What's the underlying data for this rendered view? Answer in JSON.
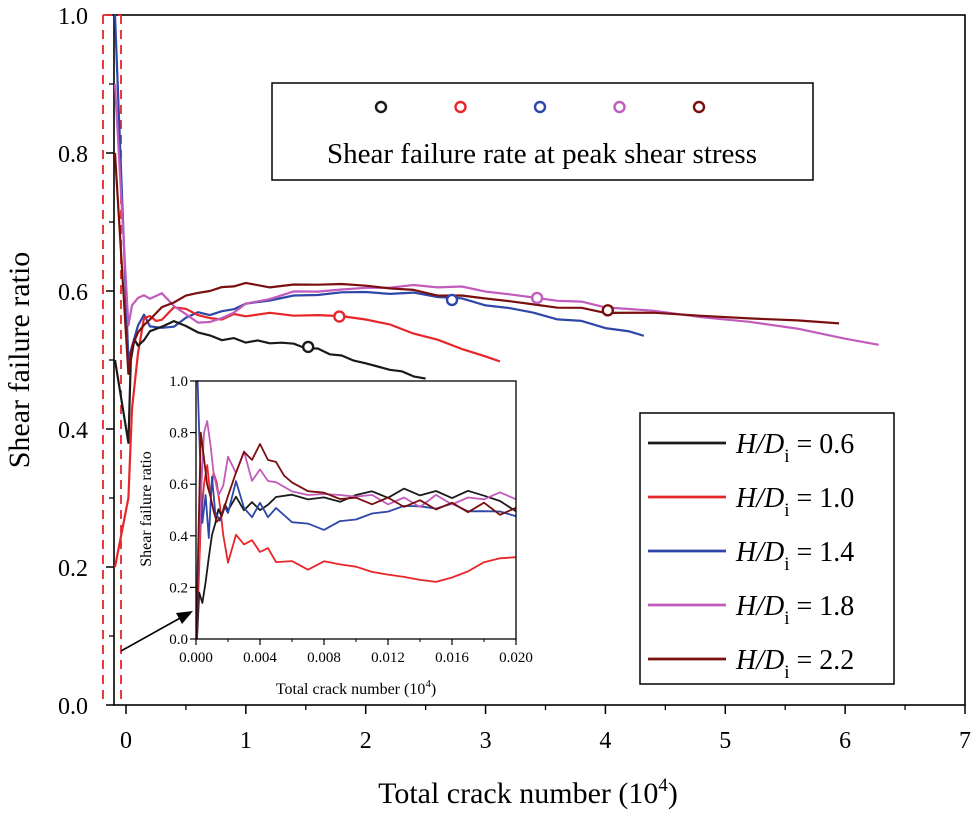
{
  "chart_data": {
    "type": "line",
    "title": "",
    "xlabel": "Total crack number (10",
    "xlabel_sup": "4",
    "xlabel_end": ")",
    "ylabel": "Shear failure ratio",
    "xlim": [
      -0.1,
      7
    ],
    "ylim": [
      0,
      1.0
    ],
    "xticks": [
      "0",
      "1",
      "2",
      "3",
      "4",
      "5",
      "6",
      "7"
    ],
    "yticks": [
      "0.0",
      "0.2",
      "0.4",
      "0.6",
      "0.8",
      "1.0"
    ],
    "legend_position": "lower-right",
    "colors": {
      "hd06": "#1a1a1a",
      "hd10": "#e8262a",
      "hd14": "#2e47a8",
      "hd18": "#c25cbc",
      "hd22": "#7a0f0f"
    },
    "series": [
      {
        "key": "hd06",
        "name_prefix": "H/D",
        "name_sub": "i",
        "name_value": " = 0.6",
        "x": [
          0.02,
          0.04,
          0.07,
          0.1,
          0.15,
          0.2,
          0.3,
          0.4,
          0.5,
          0.6,
          0.7,
          0.8,
          0.9,
          1.0,
          1.1,
          1.2,
          1.3,
          1.4,
          1.5,
          1.6,
          1.7,
          1.8,
          1.9,
          2.0,
          2.1,
          2.2,
          2.3,
          2.4,
          2.5
        ],
        "y": [
          0.38,
          0.5,
          0.53,
          0.52,
          0.53,
          0.54,
          0.55,
          0.555,
          0.55,
          0.54,
          0.535,
          0.53,
          0.53,
          0.527,
          0.527,
          0.525,
          0.525,
          0.523,
          0.518,
          0.515,
          0.51,
          0.505,
          0.5,
          0.495,
          0.49,
          0.487,
          0.482,
          0.478,
          0.473
        ],
        "peak": [
          1.52,
          0.519
        ]
      },
      {
        "key": "hd10",
        "name_prefix": "H/D",
        "name_sub": "i",
        "name_value": " = 1.0",
        "x": [
          0.02,
          0.05,
          0.1,
          0.15,
          0.2,
          0.25,
          0.3,
          0.4,
          0.5,
          0.6,
          0.7,
          0.8,
          0.9,
          1.0,
          1.2,
          1.4,
          1.6,
          1.8,
          2.0,
          2.2,
          2.4,
          2.6,
          2.8,
          3.0,
          3.12
        ],
        "y": [
          0.3,
          0.43,
          0.51,
          0.56,
          0.565,
          0.555,
          0.56,
          0.575,
          0.575,
          0.565,
          0.56,
          0.56,
          0.565,
          0.565,
          0.567,
          0.565,
          0.565,
          0.563,
          0.56,
          0.55,
          0.54,
          0.528,
          0.517,
          0.505,
          0.498
        ],
        "peak": [
          1.78,
          0.563
        ]
      },
      {
        "key": "hd14",
        "name_prefix": "H/D",
        "name_sub": "i",
        "name_value": " = 1.4",
        "x": [
          0.02,
          0.05,
          0.1,
          0.15,
          0.2,
          0.3,
          0.4,
          0.5,
          0.6,
          0.7,
          0.8,
          0.9,
          1.0,
          1.2,
          1.4,
          1.6,
          1.8,
          2.0,
          2.2,
          2.4,
          2.6,
          2.8,
          3.0,
          3.2,
          3.4,
          3.6,
          3.8,
          4.0,
          4.2,
          4.32
        ],
        "y": [
          0.5,
          0.52,
          0.55,
          0.565,
          0.55,
          0.545,
          0.55,
          0.56,
          0.57,
          0.565,
          0.57,
          0.575,
          0.58,
          0.588,
          0.592,
          0.595,
          0.598,
          0.598,
          0.597,
          0.596,
          0.593,
          0.588,
          0.58,
          0.575,
          0.568,
          0.56,
          0.555,
          0.548,
          0.54,
          0.535
        ],
        "peak": [
          2.72,
          0.587
        ]
      },
      {
        "key": "hd18",
        "name_prefix": "H/D",
        "name_sub": "i",
        "name_value": " = 1.8",
        "x": [
          0.02,
          0.05,
          0.1,
          0.15,
          0.2,
          0.3,
          0.4,
          0.5,
          0.6,
          0.7,
          0.8,
          0.9,
          1.0,
          1.2,
          1.4,
          1.6,
          1.8,
          2.0,
          2.2,
          2.4,
          2.6,
          2.8,
          3.0,
          3.2,
          3.4,
          3.6,
          3.8,
          4.0,
          4.4,
          4.8,
          5.2,
          5.6,
          6.0,
          6.28
        ],
        "y": [
          0.55,
          0.58,
          0.59,
          0.593,
          0.59,
          0.595,
          0.58,
          0.565,
          0.555,
          0.555,
          0.56,
          0.57,
          0.58,
          0.59,
          0.598,
          0.6,
          0.602,
          0.604,
          0.606,
          0.607,
          0.607,
          0.605,
          0.6,
          0.595,
          0.59,
          0.587,
          0.583,
          0.578,
          0.57,
          0.563,
          0.555,
          0.545,
          0.532,
          0.522
        ],
        "peak": [
          3.43,
          0.59
        ]
      },
      {
        "key": "hd22",
        "name_prefix": "H/D",
        "name_sub": "i",
        "name_value": " = 2.2",
        "x": [
          0.02,
          0.05,
          0.1,
          0.15,
          0.2,
          0.3,
          0.4,
          0.5,
          0.6,
          0.7,
          0.8,
          0.9,
          1.0,
          1.2,
          1.4,
          1.6,
          1.8,
          2.0,
          2.2,
          2.4,
          2.6,
          2.8,
          3.0,
          3.2,
          3.4,
          3.6,
          3.8,
          4.0,
          4.4,
          4.8,
          5.2,
          5.6,
          5.95
        ],
        "y": [
          0.48,
          0.52,
          0.54,
          0.55,
          0.56,
          0.575,
          0.585,
          0.592,
          0.598,
          0.6,
          0.605,
          0.608,
          0.61,
          0.607,
          0.608,
          0.61,
          0.61,
          0.607,
          0.605,
          0.6,
          0.595,
          0.592,
          0.59,
          0.585,
          0.58,
          0.577,
          0.574,
          0.57,
          0.567,
          0.565,
          0.56,
          0.557,
          0.553
        ],
        "peak": [
          4.02,
          0.572
        ]
      }
    ],
    "peak_legend_title": "Shear failure rate at peak shear stress",
    "inset": {
      "xlabel": "Total crack number (10",
      "xlabel_sup": "4",
      "xlabel_end": ")",
      "ylabel": "Shear failure ratio",
      "xlim": [
        0,
        0.02
      ],
      "ylim": [
        0,
        1.0
      ],
      "xticks": [
        "0.000",
        "0.004",
        "0.008",
        "0.012",
        "0.016",
        "0.020"
      ],
      "yticks": [
        "0.0",
        "0.2",
        "0.4",
        "0.6",
        "0.8",
        "1.0"
      ],
      "series": [
        {
          "key": "hd06",
          "x": [
            0.0002,
            0.0004,
            0.0006,
            0.0008,
            0.001,
            0.0012,
            0.0014,
            0.0016,
            0.0018,
            0.002,
            0.0025,
            0.003,
            0.0035,
            0.004,
            0.0045,
            0.005,
            0.006,
            0.007,
            0.008,
            0.009,
            0.01,
            0.011,
            0.012,
            0.013,
            0.014,
            0.015,
            0.016,
            0.017,
            0.018,
            0.019,
            0.02
          ],
          "y": [
            0.18,
            0.14,
            0.22,
            0.32,
            0.4,
            0.45,
            0.5,
            0.48,
            0.52,
            0.5,
            0.55,
            0.5,
            0.53,
            0.5,
            0.52,
            0.55,
            0.56,
            0.54,
            0.55,
            0.53,
            0.56,
            0.57,
            0.55,
            0.58,
            0.56,
            0.57,
            0.55,
            0.57,
            0.56,
            0.53,
            0.5
          ]
        },
        {
          "key": "hd10",
          "x": [
            0.0001,
            0.0003,
            0.0005,
            0.0007,
            0.0009,
            0.0011,
            0.0013,
            0.0015,
            0.0017,
            0.002,
            0.0025,
            0.003,
            0.0035,
            0.004,
            0.0045,
            0.005,
            0.006,
            0.007,
            0.008,
            0.009,
            0.01,
            0.011,
            0.012,
            0.013,
            0.014,
            0.015,
            0.016,
            0.017,
            0.018,
            0.019,
            0.02
          ],
          "y": [
            0.1,
            0.45,
            0.6,
            0.68,
            0.55,
            0.65,
            0.6,
            0.52,
            0.4,
            0.3,
            0.4,
            0.37,
            0.38,
            0.34,
            0.35,
            0.3,
            0.3,
            0.27,
            0.3,
            0.29,
            0.28,
            0.26,
            0.25,
            0.24,
            0.23,
            0.22,
            0.24,
            0.26,
            0.3,
            0.31,
            0.32
          ]
        },
        {
          "key": "hd14",
          "x": [
            0.0001,
            0.0002,
            0.0004,
            0.0006,
            0.0008,
            0.001,
            0.0012,
            0.0015,
            0.0018,
            0.002,
            0.0025,
            0.003,
            0.0035,
            0.004,
            0.0045,
            0.005,
            0.006,
            0.007,
            0.008,
            0.009,
            0.01,
            0.011,
            0.012,
            0.013,
            0.014,
            0.015,
            0.016,
            0.017,
            0.018,
            0.019,
            0.02
          ],
          "y": [
            1.0,
            0.8,
            0.45,
            0.55,
            0.4,
            0.62,
            0.5,
            0.45,
            0.52,
            0.48,
            0.62,
            0.5,
            0.48,
            0.52,
            0.48,
            0.5,
            0.46,
            0.44,
            0.43,
            0.45,
            0.47,
            0.48,
            0.5,
            0.51,
            0.52,
            0.5,
            0.53,
            0.49,
            0.5,
            0.49,
            0.48
          ]
        },
        {
          "key": "hd18",
          "x": [
            0.0001,
            0.0003,
            0.0005,
            0.0007,
            0.0009,
            0.0011,
            0.0014,
            0.0017,
            0.002,
            0.0025,
            0.003,
            0.0035,
            0.004,
            0.0045,
            0.005,
            0.006,
            0.007,
            0.008,
            0.009,
            0.01,
            0.011,
            0.012,
            0.013,
            0.014,
            0.015,
            0.016,
            0.017,
            0.018,
            0.019,
            0.02
          ],
          "y": [
            0.2,
            0.55,
            0.8,
            0.85,
            0.75,
            0.65,
            0.55,
            0.6,
            0.7,
            0.65,
            0.72,
            0.62,
            0.65,
            0.62,
            0.6,
            0.58,
            0.55,
            0.57,
            0.55,
            0.56,
            0.55,
            0.53,
            0.54,
            0.52,
            0.55,
            0.53,
            0.54,
            0.55,
            0.56,
            0.55
          ]
        },
        {
          "key": "hd22",
          "x": [
            0.0001,
            0.0003,
            0.0005,
            0.0007,
            0.0009,
            0.0011,
            0.0013,
            0.0016,
            0.002,
            0.0025,
            0.003,
            0.0035,
            0.004,
            0.0045,
            0.005,
            0.0055,
            0.006,
            0.007,
            0.008,
            0.009,
            0.01,
            0.011,
            0.012,
            0.013,
            0.014,
            0.015,
            0.016,
            0.017,
            0.018,
            0.019,
            0.02
          ],
          "y": [
            0.25,
            0.8,
            0.7,
            0.6,
            0.55,
            0.5,
            0.45,
            0.48,
            0.55,
            0.65,
            0.72,
            0.7,
            0.75,
            0.7,
            0.68,
            0.64,
            0.6,
            0.58,
            0.56,
            0.55,
            0.54,
            0.53,
            0.54,
            0.52,
            0.53,
            0.51,
            0.52,
            0.5,
            0.52,
            0.49,
            0.5
          ]
        }
      ]
    }
  }
}
